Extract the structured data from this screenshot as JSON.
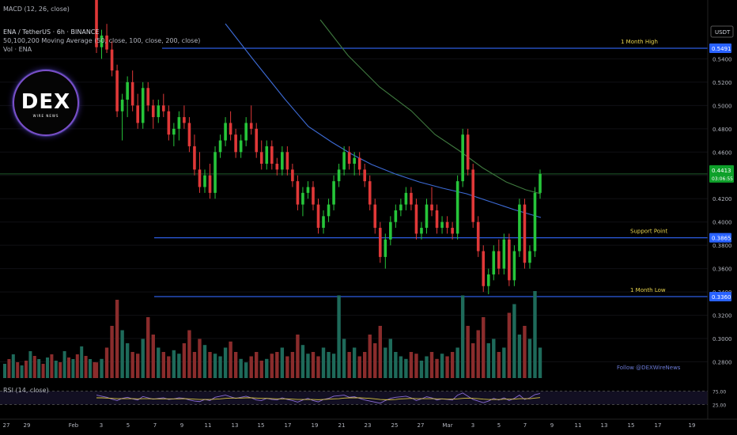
{
  "header": {
    "macd_label": "MACD (12, 26, close)",
    "symbol_line": "ENA / TetherUS · 6h · BINANCE",
    "ma_line": "50,100,200 Moving Average (50, close, 100, close, 200, close)",
    "vol_line": "Vol · ENA",
    "rsi_label": "RSI (14, close)"
  },
  "logo": {
    "text": "DEX",
    "subtext": "WIRE NEWS"
  },
  "watermark": "Follow @DEXWireNews",
  "currency": "USDT",
  "colors": {
    "up": "#26c53a",
    "down": "#e03838",
    "ma50": "#3d6bd6",
    "ma100": "#3f7a3f",
    "hline": "#2c5ce0",
    "rsi": "#8a6cd6",
    "rsi_ma": "#d8c542"
  },
  "chart_data": {
    "type": "candlestick",
    "title": "ENA / TetherUS · 6h · BINANCE",
    "ylim": [
      0.26,
      0.58
    ],
    "y_ticks": [
      "0.5400",
      "0.5200",
      "0.5000",
      "0.4800",
      "0.4600",
      "0.4400",
      "0.4200",
      "0.4000",
      "0.3800",
      "0.3600",
      "0.3400",
      "0.3200",
      "0.3000",
      "0.2800"
    ],
    "x_ticks": [
      "27",
      "29",
      "Feb",
      "3",
      "5",
      "7",
      "9",
      "11",
      "13",
      "15",
      "17",
      "19",
      "21",
      "23",
      "25",
      "27",
      "Mar",
      "3",
      "5",
      "7",
      "9",
      "11",
      "13",
      "15",
      "17",
      "19"
    ],
    "current_price": {
      "price": "0.4413",
      "countdown": "03:06:55",
      "value": 0.4413
    },
    "levels": [
      {
        "name": "1 Month High",
        "price": "0.5491",
        "value": 0.5491
      },
      {
        "name": "Support Point",
        "price": "0.3865",
        "value": 0.3865
      },
      {
        "name": "1 Month Low",
        "price": "0.3360",
        "value": 0.336
      }
    ],
    "rsi_ticks": [
      "75.00",
      "25.00"
    ],
    "candles": [
      [
        0.62,
        0.63,
        0.545,
        0.55
      ],
      [
        0.55,
        0.565,
        0.54,
        0.56
      ],
      [
        0.56,
        0.57,
        0.545,
        0.548
      ],
      [
        0.548,
        0.555,
        0.525,
        0.53
      ],
      [
        0.53,
        0.535,
        0.49,
        0.495
      ],
      [
        0.495,
        0.51,
        0.47,
        0.505
      ],
      [
        0.505,
        0.525,
        0.49,
        0.52
      ],
      [
        0.52,
        0.53,
        0.495,
        0.5
      ],
      [
        0.5,
        0.51,
        0.48,
        0.485
      ],
      [
        0.485,
        0.52,
        0.48,
        0.515
      ],
      [
        0.515,
        0.52,
        0.495,
        0.5
      ],
      [
        0.5,
        0.505,
        0.48,
        0.49
      ],
      [
        0.49,
        0.505,
        0.485,
        0.5
      ],
      [
        0.5,
        0.51,
        0.49,
        0.495
      ],
      [
        0.495,
        0.5,
        0.47,
        0.475
      ],
      [
        0.475,
        0.485,
        0.465,
        0.48
      ],
      [
        0.48,
        0.495,
        0.47,
        0.49
      ],
      [
        0.49,
        0.5,
        0.48,
        0.485
      ],
      [
        0.485,
        0.49,
        0.46,
        0.465
      ],
      [
        0.465,
        0.475,
        0.44,
        0.445
      ],
      [
        0.445,
        0.46,
        0.425,
        0.43
      ],
      [
        0.43,
        0.445,
        0.425,
        0.44
      ],
      [
        0.44,
        0.45,
        0.42,
        0.425
      ],
      [
        0.425,
        0.465,
        0.42,
        0.46
      ],
      [
        0.46,
        0.475,
        0.455,
        0.47
      ],
      [
        0.47,
        0.49,
        0.465,
        0.485
      ],
      [
        0.485,
        0.495,
        0.47,
        0.475
      ],
      [
        0.475,
        0.48,
        0.455,
        0.46
      ],
      [
        0.46,
        0.475,
        0.455,
        0.47
      ],
      [
        0.47,
        0.49,
        0.465,
        0.485
      ],
      [
        0.485,
        0.5,
        0.475,
        0.48
      ],
      [
        0.48,
        0.485,
        0.455,
        0.46
      ],
      [
        0.46,
        0.47,
        0.445,
        0.45
      ],
      [
        0.45,
        0.47,
        0.445,
        0.465
      ],
      [
        0.465,
        0.47,
        0.445,
        0.45
      ],
      [
        0.45,
        0.455,
        0.44,
        0.445
      ],
      [
        0.445,
        0.465,
        0.44,
        0.46
      ],
      [
        0.46,
        0.465,
        0.44,
        0.445
      ],
      [
        0.445,
        0.45,
        0.43,
        0.435
      ],
      [
        0.435,
        0.44,
        0.41,
        0.415
      ],
      [
        0.415,
        0.43,
        0.405,
        0.425
      ],
      [
        0.425,
        0.435,
        0.42,
        0.43
      ],
      [
        0.43,
        0.435,
        0.41,
        0.415
      ],
      [
        0.415,
        0.42,
        0.39,
        0.395
      ],
      [
        0.395,
        0.41,
        0.39,
        0.405
      ],
      [
        0.405,
        0.42,
        0.4,
        0.415
      ],
      [
        0.415,
        0.44,
        0.41,
        0.435
      ],
      [
        0.435,
        0.45,
        0.43,
        0.445
      ],
      [
        0.445,
        0.465,
        0.44,
        0.46
      ],
      [
        0.46,
        0.465,
        0.445,
        0.45
      ],
      [
        0.45,
        0.46,
        0.44,
        0.455
      ],
      [
        0.455,
        0.46,
        0.44,
        0.445
      ],
      [
        0.445,
        0.45,
        0.43,
        0.435
      ],
      [
        0.435,
        0.44,
        0.41,
        0.415
      ],
      [
        0.415,
        0.42,
        0.39,
        0.395
      ],
      [
        0.395,
        0.4,
        0.365,
        0.37
      ],
      [
        0.37,
        0.39,
        0.36,
        0.385
      ],
      [
        0.385,
        0.405,
        0.38,
        0.4
      ],
      [
        0.4,
        0.415,
        0.395,
        0.41
      ],
      [
        0.41,
        0.42,
        0.405,
        0.415
      ],
      [
        0.415,
        0.43,
        0.41,
        0.425
      ],
      [
        0.425,
        0.43,
        0.41,
        0.415
      ],
      [
        0.415,
        0.42,
        0.385,
        0.39
      ],
      [
        0.39,
        0.4,
        0.385,
        0.395
      ],
      [
        0.395,
        0.42,
        0.39,
        0.415
      ],
      [
        0.415,
        0.43,
        0.405,
        0.41
      ],
      [
        0.41,
        0.415,
        0.39,
        0.395
      ],
      [
        0.395,
        0.405,
        0.39,
        0.4
      ],
      [
        0.4,
        0.405,
        0.39,
        0.395
      ],
      [
        0.395,
        0.4,
        0.385,
        0.39
      ],
      [
        0.39,
        0.44,
        0.385,
        0.435
      ],
      [
        0.435,
        0.48,
        0.43,
        0.475
      ],
      [
        0.475,
        0.48,
        0.44,
        0.445
      ],
      [
        0.445,
        0.45,
        0.395,
        0.4
      ],
      [
        0.4,
        0.405,
        0.37,
        0.375
      ],
      [
        0.375,
        0.38,
        0.34,
        0.345
      ],
      [
        0.345,
        0.36,
        0.338,
        0.355
      ],
      [
        0.355,
        0.38,
        0.35,
        0.375
      ],
      [
        0.375,
        0.385,
        0.355,
        0.36
      ],
      [
        0.36,
        0.39,
        0.355,
        0.385
      ],
      [
        0.385,
        0.39,
        0.345,
        0.35
      ],
      [
        0.35,
        0.38,
        0.345,
        0.375
      ],
      [
        0.375,
        0.42,
        0.37,
        0.415
      ],
      [
        0.415,
        0.42,
        0.36,
        0.365
      ],
      [
        0.365,
        0.38,
        0.36,
        0.375
      ],
      [
        0.375,
        0.43,
        0.37,
        0.425
      ],
      [
        0.425,
        0.445,
        0.42,
        0.4413
      ]
    ],
    "volumes": [
      0.18,
      0.22,
      0.35,
      0.6,
      0.9,
      0.55,
      0.4,
      0.3,
      0.28,
      0.45,
      0.7,
      0.5,
      0.35,
      0.3,
      0.25,
      0.32,
      0.28,
      0.4,
      0.55,
      0.3,
      0.45,
      0.38,
      0.3,
      0.28,
      0.25,
      0.35,
      0.42,
      0.3,
      0.22,
      0.18,
      0.25,
      0.3,
      0.2,
      0.22,
      0.28,
      0.3,
      0.35,
      0.25,
      0.3,
      0.5,
      0.38,
      0.28,
      0.3,
      0.25,
      0.35,
      0.3,
      0.28,
      0.95,
      0.45,
      0.3,
      0.35,
      0.25,
      0.3,
      0.5,
      0.4,
      0.6,
      0.35,
      0.45,
      0.3,
      0.25,
      0.22,
      0.3,
      0.28,
      0.2,
      0.25,
      0.3,
      0.22,
      0.28,
      0.25,
      0.3,
      0.35,
      0.95,
      0.6,
      0.4,
      0.55,
      0.7,
      0.4,
      0.45,
      0.3,
      0.35,
      0.75,
      0.85,
      0.5,
      0.6,
      0.45,
      1.0,
      0.35
    ],
    "rsi": [
      60,
      56,
      52,
      45,
      40,
      48,
      52,
      46,
      42,
      55,
      50,
      45,
      48,
      50,
      44,
      46,
      50,
      48,
      42,
      38,
      36,
      44,
      40,
      52,
      56,
      60,
      54,
      48,
      52,
      56,
      50,
      42,
      40,
      48,
      44,
      42,
      50,
      44,
      40,
      34,
      42,
      48,
      40,
      35,
      44,
      48,
      56,
      58,
      60,
      52,
      54,
      48,
      42,
      38,
      34,
      30,
      40,
      48,
      52,
      54,
      56,
      50,
      40,
      46,
      54,
      50,
      42,
      46,
      44,
      42,
      60,
      68,
      56,
      44,
      38,
      32,
      38,
      48,
      42,
      50,
      40,
      48,
      60,
      44,
      50,
      62,
      66
    ],
    "rsi_ma": [
      50,
      50,
      49,
      48,
      47,
      47,
      47,
      47,
      46,
      47,
      47,
      46,
      46,
      46,
      46,
      46,
      46,
      47,
      46,
      45,
      44,
      44,
      44,
      45,
      46,
      48,
      49,
      49,
      49,
      50,
      50,
      49,
      48,
      48,
      47,
      46,
      46,
      46,
      45,
      44,
      44,
      44,
      44,
      43,
      44,
      45,
      46,
      47,
      49,
      50,
      50,
      50,
      49,
      48,
      46,
      44,
      43,
      43,
      44,
      46,
      47,
      48,
      47,
      47,
      47,
      47,
      46,
      46,
      45,
      45,
      46,
      48,
      49,
      48,
      47,
      45,
      44,
      44,
      44,
      45,
      45,
      45,
      47,
      47,
      47,
      49,
      51
    ]
  }
}
